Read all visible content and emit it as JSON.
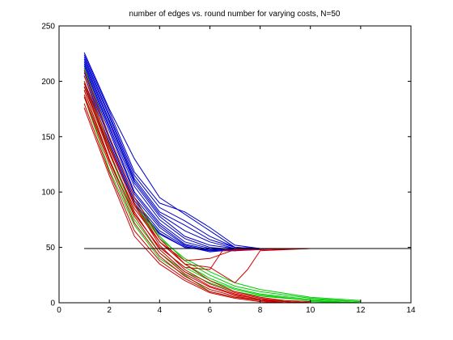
{
  "chart_data": {
    "type": "line",
    "title": "number of edges vs. round number for varying costs, N=50",
    "xlabel": "",
    "ylabel": "",
    "xlim": [
      0,
      14
    ],
    "ylim": [
      0,
      250
    ],
    "x_ticks": [
      0,
      2,
      4,
      6,
      8,
      10,
      12,
      14
    ],
    "y_ticks": [
      0,
      50,
      100,
      150,
      200,
      250
    ],
    "x_tick_labels": [
      "0",
      "2",
      "4",
      "6",
      "8",
      "10",
      "12",
      "14"
    ],
    "y_tick_labels": [
      "0",
      "50",
      "100",
      "150",
      "200",
      "250"
    ],
    "grid": false,
    "legend": "none",
    "colors": {
      "blue": "#0000cc",
      "green": "#00cc00",
      "red": "#cc0000",
      "reference": "#000000"
    },
    "reference_line": {
      "y": 49,
      "x": [
        1,
        14
      ]
    },
    "series": [
      {
        "color": "blue",
        "x": [
          1,
          2,
          3,
          4,
          5,
          6,
          7,
          8,
          10,
          14
        ],
        "y": [
          226,
          175,
          130,
          95,
          80,
          65,
          50,
          49,
          49,
          49
        ]
      },
      {
        "color": "blue",
        "x": [
          1,
          2,
          3,
          4,
          5,
          6,
          7,
          8,
          10,
          14
        ],
        "y": [
          224,
          173,
          118,
          90,
          82,
          68,
          52,
          49,
          49,
          49
        ]
      },
      {
        "color": "blue",
        "x": [
          1,
          2,
          3,
          4,
          5,
          6,
          7,
          8,
          10,
          14
        ],
        "y": [
          222,
          170,
          115,
          86,
          74,
          60,
          50,
          49,
          49,
          49
        ]
      },
      {
        "color": "blue",
        "x": [
          1,
          2,
          3,
          4,
          5,
          6,
          7,
          8,
          10,
          14
        ],
        "y": [
          220,
          168,
          112,
          82,
          70,
          57,
          50,
          49,
          49,
          49
        ]
      },
      {
        "color": "blue",
        "x": [
          1,
          2,
          3,
          4,
          5,
          6,
          7,
          8,
          10,
          14
        ],
        "y": [
          218,
          165,
          110,
          80,
          65,
          55,
          49,
          49,
          49,
          49
        ]
      },
      {
        "color": "blue",
        "x": [
          1,
          2,
          3,
          4,
          5,
          6,
          7,
          8,
          10,
          14
        ],
        "y": [
          216,
          163,
          108,
          78,
          60,
          52,
          49,
          49,
          49,
          49
        ]
      },
      {
        "color": "blue",
        "x": [
          1,
          2,
          3,
          4,
          5,
          6,
          7,
          8,
          10,
          14
        ],
        "y": [
          214,
          160,
          105,
          75,
          58,
          50,
          48,
          49,
          49,
          49
        ]
      },
      {
        "color": "blue",
        "x": [
          1,
          2,
          3,
          4,
          5,
          6,
          7,
          8,
          10,
          14
        ],
        "y": [
          212,
          158,
          100,
          72,
          55,
          49,
          48,
          49,
          49,
          49
        ]
      },
      {
        "color": "blue",
        "x": [
          1,
          2,
          3,
          4,
          5,
          6,
          7,
          8,
          10,
          14
        ],
        "y": [
          210,
          155,
          98,
          70,
          53,
          48,
          47,
          49,
          49,
          49
        ]
      },
      {
        "color": "blue",
        "x": [
          1,
          2,
          3,
          4,
          5,
          6,
          7,
          8,
          10,
          14
        ],
        "y": [
          208,
          150,
          95,
          68,
          52,
          47,
          47,
          48,
          49,
          49
        ]
      },
      {
        "color": "blue",
        "x": [
          1,
          2,
          3,
          4,
          5,
          6,
          7,
          8,
          10,
          14
        ],
        "y": [
          205,
          148,
          92,
          65,
          51,
          46,
          48,
          48,
          49,
          49
        ]
      },
      {
        "color": "blue",
        "x": [
          1,
          2,
          3,
          4,
          5,
          6,
          7,
          8,
          10,
          14
        ],
        "y": [
          200,
          145,
          90,
          63,
          50,
          47,
          49,
          49,
          49,
          49
        ]
      },
      {
        "color": "blue",
        "x": [
          1,
          2,
          3,
          4,
          5,
          6,
          7,
          8,
          10,
          14
        ],
        "y": [
          195,
          140,
          88,
          62,
          50,
          48,
          49,
          49,
          49,
          49
        ]
      },
      {
        "color": "green",
        "x": [
          1,
          2,
          3,
          4,
          5,
          6,
          7,
          8,
          10,
          12
        ],
        "y": [
          212,
          150,
          95,
          60,
          38,
          25,
          15,
          10,
          4,
          1
        ]
      },
      {
        "color": "green",
        "x": [
          1,
          2,
          3,
          4,
          5,
          6,
          7,
          8,
          10,
          12
        ],
        "y": [
          205,
          142,
          88,
          55,
          35,
          22,
          13,
          8,
          3,
          1
        ]
      },
      {
        "color": "green",
        "x": [
          1,
          2,
          3,
          4,
          5,
          6,
          7,
          8,
          10,
          12
        ],
        "y": [
          198,
          135,
          80,
          50,
          32,
          20,
          12,
          7,
          2,
          0
        ]
      },
      {
        "color": "green",
        "x": [
          1,
          2,
          3,
          4,
          5,
          6,
          7,
          8,
          10,
          12
        ],
        "y": [
          192,
          128,
          75,
          45,
          28,
          18,
          10,
          6,
          2,
          0
        ]
      },
      {
        "color": "green",
        "x": [
          1,
          2,
          3,
          4,
          5,
          6,
          7,
          8,
          10,
          12
        ],
        "y": [
          186,
          120,
          70,
          40,
          25,
          10,
          5,
          3,
          1,
          0
        ]
      },
      {
        "color": "green",
        "x": [
          1,
          2,
          3,
          4,
          5,
          6,
          7,
          8,
          10,
          12
        ],
        "y": [
          200,
          140,
          90,
          58,
          40,
          28,
          18,
          12,
          5,
          2
        ]
      },
      {
        "color": "red",
        "x": [
          1,
          2,
          3,
          4,
          5,
          6,
          7,
          8,
          9,
          10
        ],
        "y": [
          210,
          150,
          95,
          58,
          35,
          20,
          10,
          5,
          2,
          1
        ]
      },
      {
        "color": "red",
        "x": [
          1,
          2,
          3,
          4,
          5,
          6,
          7,
          8,
          9,
          10
        ],
        "y": [
          205,
          143,
          88,
          52,
          30,
          17,
          9,
          4,
          1,
          0
        ]
      },
      {
        "color": "red",
        "x": [
          1,
          2,
          3,
          4,
          5,
          6,
          7,
          8,
          9,
          10
        ],
        "y": [
          198,
          137,
          82,
          48,
          28,
          15,
          8,
          3,
          1,
          0
        ]
      },
      {
        "color": "red",
        "x": [
          1,
          2,
          3,
          4,
          5,
          6,
          7,
          8,
          9,
          10
        ],
        "y": [
          192,
          130,
          78,
          45,
          26,
          14,
          7,
          3,
          1,
          0
        ]
      },
      {
        "color": "red",
        "x": [
          1,
          2,
          3,
          4,
          5,
          6,
          7,
          8,
          9,
          10
        ],
        "y": [
          186,
          125,
          72,
          42,
          24,
          12,
          6,
          2,
          1,
          0
        ]
      },
      {
        "color": "red",
        "x": [
          1,
          2,
          3,
          4,
          5,
          6,
          7,
          8,
          9,
          10
        ],
        "y": [
          180,
          118,
          65,
          38,
          22,
          10,
          5,
          2,
          0,
          0
        ]
      },
      {
        "color": "red",
        "x": [
          1,
          2,
          3,
          4,
          5,
          6,
          7,
          8,
          9,
          10
        ],
        "y": [
          176,
          115,
          60,
          35,
          20,
          9,
          4,
          1,
          0,
          0
        ]
      },
      {
        "color": "red",
        "x": [
          1,
          2,
          3,
          4,
          5,
          6,
          7,
          7.5,
          8,
          10
        ],
        "y": [
          200,
          140,
          90,
          55,
          35,
          32,
          18,
          30,
          47,
          49
        ]
      },
      {
        "color": "red",
        "x": [
          1,
          2,
          3,
          4,
          5,
          6,
          7,
          8,
          10,
          14
        ],
        "y": [
          195,
          135,
          85,
          55,
          38,
          40,
          48,
          49,
          49,
          49
        ]
      },
      {
        "color": "red",
        "x": [
          1,
          2,
          3,
          4,
          5,
          6,
          6.5,
          8,
          10,
          14
        ],
        "y": [
          188,
          128,
          80,
          50,
          32,
          30,
          47,
          48,
          49,
          49
        ]
      }
    ]
  }
}
